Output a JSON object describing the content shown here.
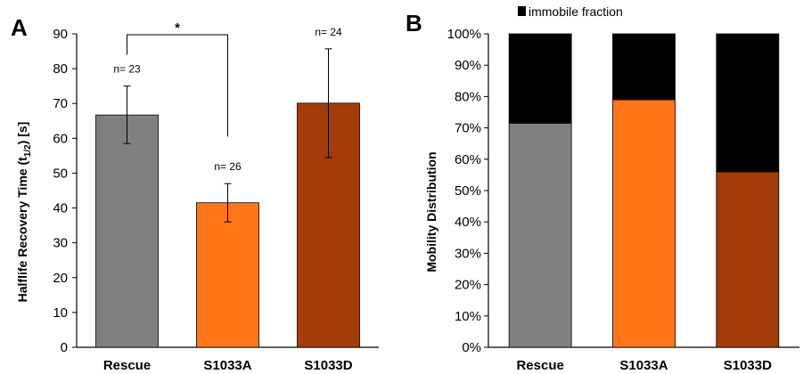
{
  "chart_data": [
    {
      "type": "bar",
      "panel_label": "A",
      "ylabel_main": "Halflife Recovery Time (t",
      "ylabel_sub": "1/2",
      "ylabel_tail": ") [s]",
      "ylim": [
        0,
        90
      ],
      "yticks": [
        0,
        10,
        20,
        30,
        40,
        50,
        60,
        70,
        80,
        90
      ],
      "categories": [
        "Rescue",
        "S1033A",
        "S1033D"
      ],
      "values": [
        66.7,
        41.5,
        70.1
      ],
      "error_low": [
        58.5,
        36.0,
        54.5
      ],
      "error_high": [
        75.0,
        47.0,
        85.7
      ],
      "n_labels": [
        "n= 23",
        "n= 26",
        "n= 24"
      ],
      "colors": [
        "#808080",
        "#ff7518",
        "#a33c08"
      ],
      "significance": {
        "from": "Rescue",
        "to": "S1033A",
        "label": "*"
      }
    },
    {
      "type": "bar",
      "stacked": true,
      "panel_label": "B",
      "ylabel": "Mobility Distribution",
      "ylim": [
        0,
        100
      ],
      "yticks": [
        "0%",
        "10%",
        "20%",
        "30%",
        "40%",
        "50%",
        "60%",
        "70%",
        "80%",
        "90%",
        "100%"
      ],
      "categories": [
        "Rescue",
        "S1033A",
        "S1033D"
      ],
      "mobile_values": [
        71.5,
        79.0,
        56.0
      ],
      "immobile_values": [
        28.5,
        21.0,
        44.0
      ],
      "colors": [
        "#808080",
        "#ff7518",
        "#a33c08"
      ],
      "immobile_color": "#000000",
      "legend": [
        {
          "name": "immobile fraction",
          "color": "#000000"
        }
      ]
    }
  ]
}
